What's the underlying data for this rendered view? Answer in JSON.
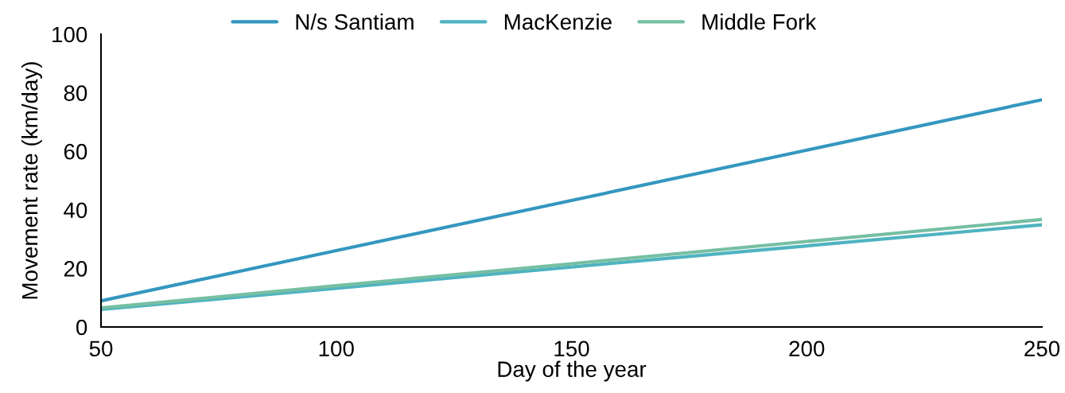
{
  "chart_data": {
    "type": "line",
    "xlabel": "Day of the year",
    "ylabel": "Movement rate (km/day)",
    "x": [
      50,
      100,
      150,
      200,
      250
    ],
    "series": [
      {
        "name": "N/s Santiam",
        "color": "#3497bf",
        "values": [
          8.9,
          26.1,
          43.2,
          60.4,
          77.6
        ]
      },
      {
        "name": "MacKenzie",
        "color": "#4fb3c1",
        "values": [
          6.0,
          13.2,
          20.5,
          27.7,
          34.9
        ]
      },
      {
        "name": "Middle Fork",
        "color": "#76bfa2",
        "values": [
          6.5,
          14.1,
          21.6,
          29.2,
          36.7
        ]
      }
    ],
    "xlim": [
      50,
      250
    ],
    "xticks": [
      50,
      100,
      150,
      200,
      250
    ],
    "ylim": [
      0,
      100
    ],
    "yticks": [
      0,
      20,
      40,
      60,
      80,
      100
    ],
    "grid": false,
    "legend": "top",
    "marker": "none",
    "line_style": "solid"
  }
}
